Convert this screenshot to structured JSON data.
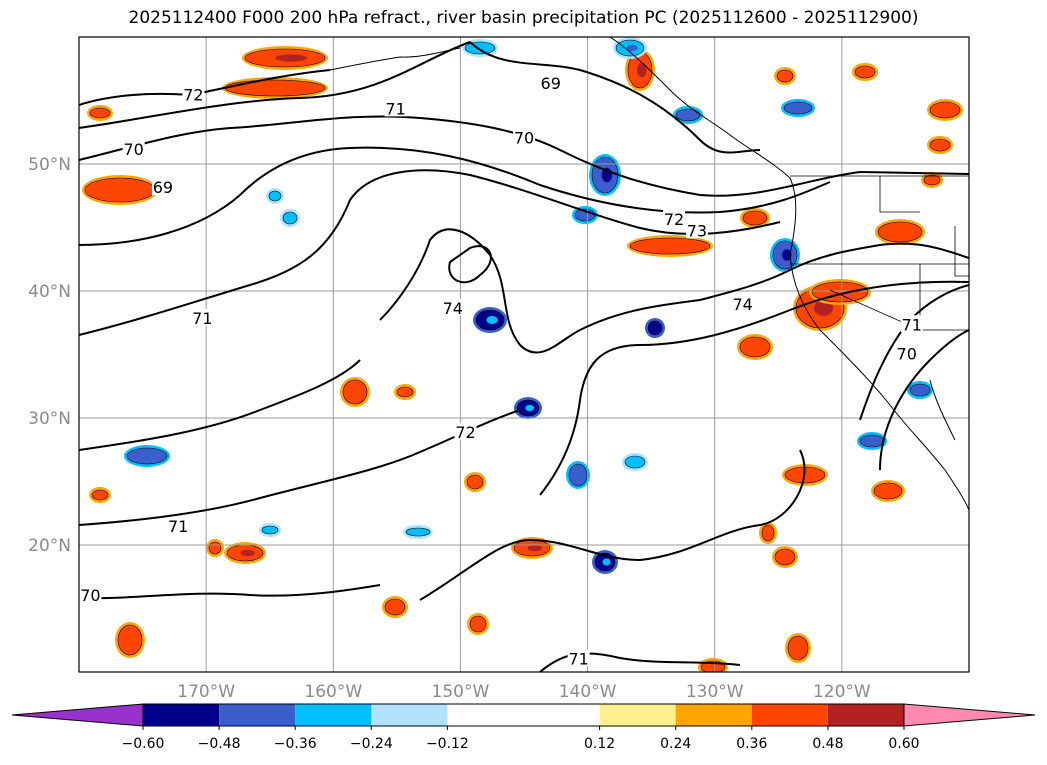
{
  "title": "2025112400 F000 200 hPa refract., river basin precipitation PC (2025112600 - 2025112900)",
  "chart_data": {
    "type": "heatmap",
    "map_extent": {
      "lon": [
        -180,
        -110
      ],
      "lat": [
        10,
        60
      ]
    },
    "grid": true,
    "x_ticks": [
      {
        "value": -170,
        "label": "170°W"
      },
      {
        "value": -160,
        "label": "160°W"
      },
      {
        "value": -150,
        "label": "150°W"
      },
      {
        "value": -140,
        "label": "140°W"
      },
      {
        "value": -130,
        "label": "130°W"
      },
      {
        "value": -120,
        "label": "120°W"
      }
    ],
    "y_ticks": [
      {
        "value": 50,
        "label": "50°N"
      },
      {
        "value": 40,
        "label": "40°N"
      },
      {
        "value": 30,
        "label": "30°N"
      },
      {
        "value": 20,
        "label": "20°N"
      }
    ],
    "colorbar": {
      "levels": [
        -0.6,
        -0.48,
        -0.36,
        -0.24,
        -0.12,
        0.12,
        0.24,
        0.36,
        0.48,
        0.6
      ],
      "labels": [
        "−0.60",
        "−0.48",
        "−0.36",
        "−0.24",
        "−0.12",
        "0.12",
        "0.24",
        "0.36",
        "0.48",
        "0.60"
      ],
      "colors": [
        "#9932cc",
        "#00008b",
        "#3a5fcd",
        "#00bfff",
        "#b0e2ff",
        "#ffffff",
        "#fff08c",
        "#ffa500",
        "#ff4500",
        "#b22222",
        "#ff89b0"
      ],
      "extend": "both"
    },
    "contour_labels": [
      {
        "text": "72",
        "lon": -171.0,
        "lat": 55.4
      },
      {
        "text": "71",
        "lon": -155.1,
        "lat": 54.3
      },
      {
        "text": "70",
        "lon": -145.0,
        "lat": 52.0
      },
      {
        "text": "69",
        "lon": -173.4,
        "lat": 48.1
      },
      {
        "text": "70",
        "lon": -175.7,
        "lat": 51.1
      },
      {
        "text": "69",
        "lon": -142.9,
        "lat": 56.3
      },
      {
        "text": "72",
        "lon": -133.2,
        "lat": 45.6
      },
      {
        "text": "73",
        "lon": -131.4,
        "lat": 44.7
      },
      {
        "text": "71",
        "lon": -170.3,
        "lat": 37.8
      },
      {
        "text": "74",
        "lon": -150.6,
        "lat": 38.6
      },
      {
        "text": "74",
        "lon": -127.8,
        "lat": 38.9
      },
      {
        "text": "71",
        "lon": -114.5,
        "lat": 37.3
      },
      {
        "text": "70",
        "lon": -114.9,
        "lat": 35.0
      },
      {
        "text": "72",
        "lon": -149.6,
        "lat": 28.8
      },
      {
        "text": "71",
        "lon": -172.2,
        "lat": 21.4
      },
      {
        "text": "70",
        "lon": -179.1,
        "lat": 16.0
      },
      {
        "text": "71",
        "lon": -140.7,
        "lat": 11.0
      }
    ]
  }
}
